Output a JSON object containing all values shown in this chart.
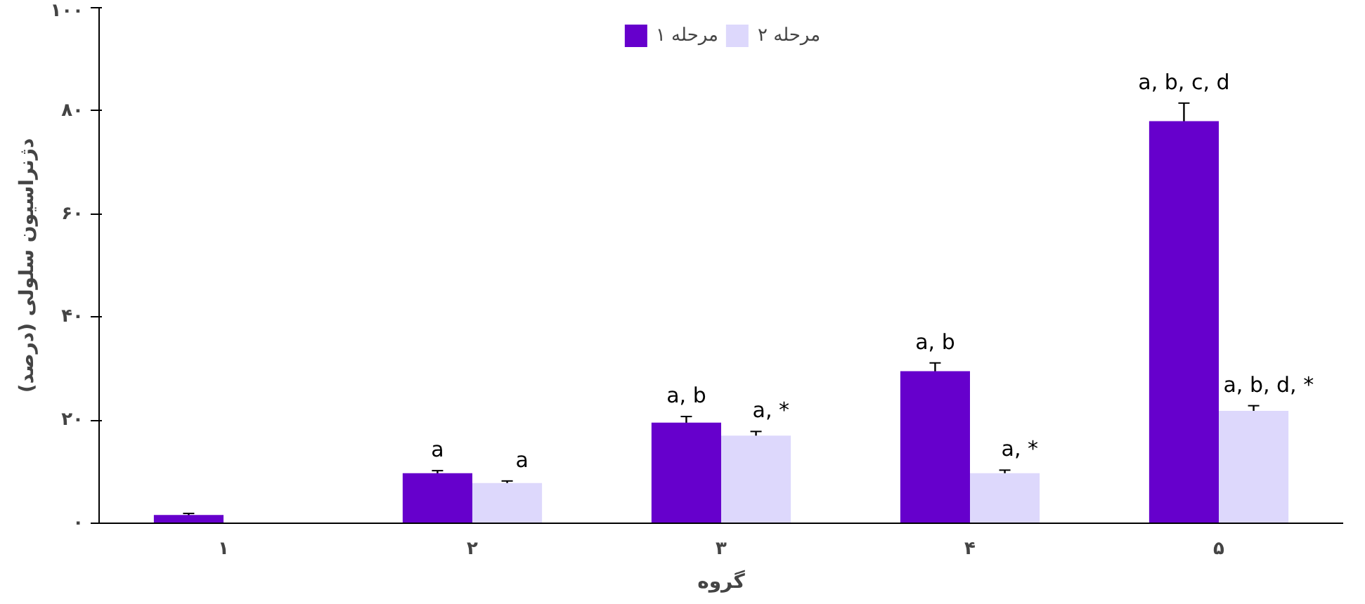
{
  "chart_data": {
    "type": "bar",
    "xlabel": "گروه",
    "ylabel": "دژنراسیون سلولی (درصد)",
    "categories": [
      "۱",
      "۲",
      "۳",
      "۴",
      "۵"
    ],
    "series": [
      {
        "name": "مرحله ۱",
        "color": "#6600cc",
        "values": [
          1.6,
          9.7,
          19.5,
          29.5,
          78
        ],
        "errors": [
          0.3,
          0.5,
          1.2,
          1.6,
          3.5
        ]
      },
      {
        "name": "مرحله ۲",
        "color": "#ddd8fc",
        "values": [
          null,
          7.8,
          17,
          9.7,
          21.8
        ],
        "errors": [
          null,
          0.4,
          0.8,
          0.6,
          1
        ]
      }
    ],
    "ylim": [
      0,
      100
    ],
    "yticks": [
      {
        "value": 0,
        "label": "۰"
      },
      {
        "value": 20,
        "label": "۲۰"
      },
      {
        "value": 40,
        "label": "۴۰"
      },
      {
        "value": 60,
        "label": "۶۰"
      },
      {
        "value": 80,
        "label": "۸۰"
      },
      {
        "value": 100,
        "label": "۱۰۰"
      }
    ],
    "grid": false,
    "legend": "top",
    "annotations": [
      {
        "text": "a",
        "x": "۲",
        "y": 9.7
      },
      {
        "text": "a",
        "x": "۲",
        "y": 7.8
      },
      {
        "text": "a, b",
        "x": "۳",
        "y": 19.5
      },
      {
        "text": "a, *",
        "x": "۳",
        "y": 17
      },
      {
        "text": "a, b",
        "x": "۴",
        "y": 29.5
      },
      {
        "text": "a, *",
        "x": "۴",
        "y": 9.7
      },
      {
        "text": "a, b, c, d",
        "x": "۵",
        "y": 78
      },
      {
        "text": "a, b, d, *",
        "x": "۵",
        "y": 21.8
      }
    ]
  }
}
